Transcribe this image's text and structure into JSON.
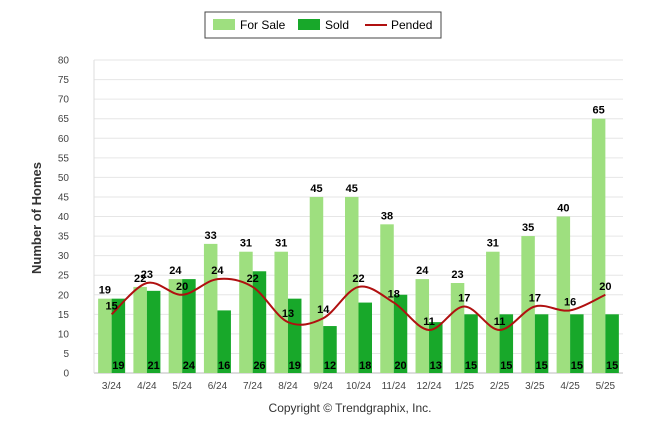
{
  "chart_data": {
    "type": "bar",
    "title": "",
    "xlabel": "",
    "ylabel": "Number of Homes",
    "ylim": [
      0,
      80
    ],
    "yticks": [
      0,
      5,
      10,
      15,
      20,
      25,
      30,
      35,
      40,
      45,
      50,
      55,
      60,
      65,
      70,
      75,
      80
    ],
    "categories": [
      "3/24",
      "4/24",
      "5/24",
      "6/24",
      "7/24",
      "8/24",
      "9/24",
      "10/24",
      "11/24",
      "12/24",
      "1/25",
      "2/25",
      "3/25",
      "4/25",
      "5/25"
    ],
    "series": [
      {
        "name": "For Sale",
        "kind": "bar",
        "color": "#9edf7f",
        "values": [
          19,
          22,
          24,
          33,
          31,
          31,
          45,
          45,
          38,
          24,
          23,
          31,
          35,
          40,
          65
        ]
      },
      {
        "name": "Sold",
        "kind": "bar",
        "color": "#18a82a",
        "values": [
          19,
          21,
          24,
          16,
          26,
          19,
          12,
          18,
          20,
          13,
          15,
          15,
          15,
          15,
          15
        ]
      },
      {
        "name": "Pended",
        "kind": "line",
        "color": "#b01010",
        "values": [
          15,
          23,
          20,
          24,
          22,
          13,
          14,
          22,
          18,
          11,
          17,
          11,
          17,
          16,
          20
        ]
      }
    ],
    "legend": "top-center",
    "grid": true
  },
  "credit": "Copyright © Trendgraphix, Inc."
}
